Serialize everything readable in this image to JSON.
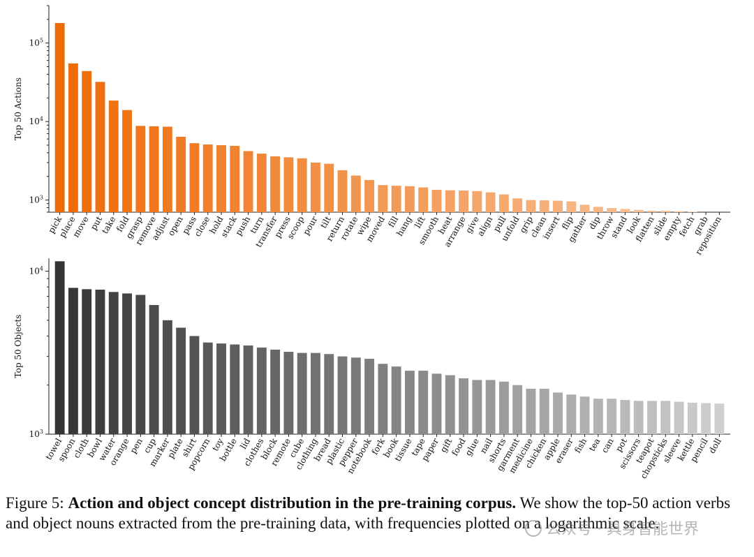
{
  "chart_data": [
    {
      "type": "bar",
      "ylabel": "Top 50 Actions",
      "yscale": "log",
      "ylim": [
        700,
        300000
      ],
      "yticks": [
        "10^3",
        "10^4",
        "10^5"
      ],
      "grid": false,
      "color_start": "#ee6a06",
      "color_end": "#f8c9a4",
      "categories": [
        "pick",
        "place",
        "move",
        "put",
        "take",
        "fold",
        "grasp",
        "remove",
        "adjust",
        "open",
        "pass",
        "close",
        "hold",
        "stack",
        "push",
        "turn",
        "transfer",
        "press",
        "scoop",
        "pour",
        "tilt",
        "return",
        "rotate",
        "wipe",
        "moved",
        "fill",
        "hang",
        "lift",
        "smooth",
        "heat",
        "arrange",
        "give",
        "align",
        "pull",
        "unfold",
        "grip",
        "clean",
        "insert",
        "flip",
        "gather",
        "dip",
        "throw",
        "stand",
        "look",
        "flatten",
        "slide",
        "empty",
        "fetch",
        "grab",
        "reposition"
      ],
      "values": [
        180000,
        55000,
        44000,
        32000,
        18500,
        14000,
        8800,
        8700,
        8600,
        6400,
        5300,
        5100,
        5000,
        4900,
        4200,
        3900,
        3600,
        3500,
        3400,
        3000,
        2900,
        2400,
        2050,
        1800,
        1550,
        1520,
        1500,
        1450,
        1350,
        1330,
        1320,
        1300,
        1250,
        1180,
        1050,
        1000,
        990,
        980,
        960,
        870,
        820,
        790,
        770,
        750,
        730,
        730,
        720,
        710,
        700,
        680
      ]
    },
    {
      "type": "bar",
      "ylabel": "Top 50 Objects",
      "yscale": "log",
      "ylim": [
        1000,
        12000
      ],
      "yticks": [
        "10^3",
        "10^4"
      ],
      "grid": false,
      "color_start": "#353535",
      "color_end": "#cfcfcf",
      "categories": [
        "towel",
        "spoon",
        "cloth",
        "bowl",
        "water",
        "orange",
        "pen",
        "cup",
        "marker",
        "plate",
        "shirt",
        "popcorn",
        "toy",
        "bottle",
        "lid",
        "clothes",
        "block",
        "remote",
        "cube",
        "clothing",
        "bread",
        "plastic",
        "pepper",
        "notebook",
        "fork",
        "book",
        "tissue",
        "tape",
        "paper",
        "gift",
        "food",
        "glue",
        "nail",
        "shorts",
        "garment",
        "medicine",
        "chicken",
        "apple",
        "eraser",
        "fish",
        "tea",
        "can",
        "pot",
        "scissors",
        "teapot",
        "chopsticks",
        "sleeve",
        "kettle",
        "pencil",
        "doll"
      ],
      "values": [
        11500,
        7900,
        7750,
        7700,
        7450,
        7300,
        7150,
        6200,
        5000,
        4500,
        4000,
        3650,
        3600,
        3550,
        3500,
        3400,
        3300,
        3200,
        3150,
        3150,
        3100,
        3000,
        2950,
        2900,
        2700,
        2600,
        2450,
        2450,
        2350,
        2300,
        2200,
        2150,
        2150,
        2100,
        2000,
        1900,
        1900,
        1800,
        1750,
        1700,
        1650,
        1650,
        1620,
        1600,
        1600,
        1600,
        1580,
        1560,
        1550,
        1540
      ]
    }
  ],
  "caption": {
    "prefix": "Figure 5: ",
    "bold": "Action and object concept distribution in the pre-training corpus.",
    "rest": " We show the top-50 action verbs and object nouns extracted from the pre-training data, with frequencies plotted on a logarithmic scale."
  },
  "watermark": "公众号 · 具身智能世界"
}
